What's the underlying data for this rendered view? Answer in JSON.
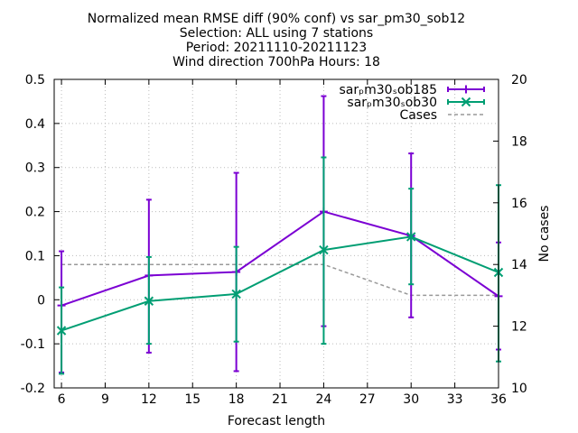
{
  "chart_data": {
    "type": "line",
    "title_lines": [
      "Normalized mean RMSE diff (90% conf) vs sar_pm30_sob12",
      "Selection: ALL using     7 stations",
      "Period: 20211110-20211123",
      "Wind direction 700hPa   Hours: 18"
    ],
    "xlabel": "Forecast length",
    "ylabel": "",
    "y2label": "No cases",
    "xlim": [
      5.5,
      36
    ],
    "ylim": [
      -0.2,
      0.5
    ],
    "y2lim": [
      10,
      20
    ],
    "xticks": [
      6,
      9,
      12,
      15,
      18,
      21,
      24,
      27,
      30,
      33,
      36
    ],
    "yticks": [
      -0.2,
      -0.1,
      0,
      0.1,
      0.2,
      0.3,
      0.4,
      0.5
    ],
    "ytick_labels": [
      "-0.2",
      "-0.1",
      "0",
      "0.1",
      "0.2",
      "0.3",
      "0.4",
      "0.5"
    ],
    "y2ticks": [
      10,
      12,
      14,
      16,
      18,
      20
    ],
    "grid": true,
    "legend_position": "top-right",
    "x": [
      6,
      12,
      18,
      24,
      30,
      36
    ],
    "series": [
      {
        "name": "sar_pm30_sob185",
        "axis": "y1",
        "color": "#7b00d3",
        "marker": "plus",
        "values": [
          -0.013,
          0.055,
          0.063,
          0.2,
          0.145,
          0.008
        ],
        "err_low": [
          -0.165,
          -0.12,
          -0.162,
          -0.06,
          -0.04,
          -0.113
        ],
        "err_high": [
          0.11,
          0.227,
          0.288,
          0.462,
          0.332,
          0.13
        ]
      },
      {
        "name": "sar_pm30_sob30",
        "axis": "y1",
        "color": "#009e73",
        "marker": "x",
        "values": [
          -0.07,
          -0.003,
          0.013,
          0.113,
          0.143,
          0.062
        ],
        "err_low": [
          -0.168,
          -0.1,
          -0.095,
          -0.1,
          0.035,
          -0.14
        ],
        "err_high": [
          0.028,
          0.097,
          0.12,
          0.323,
          0.252,
          0.26
        ]
      },
      {
        "name": "Cases",
        "axis": "y2",
        "color": "#999999",
        "style": "dashed",
        "values": [
          14,
          14,
          14,
          14,
          13,
          13
        ]
      }
    ]
  }
}
